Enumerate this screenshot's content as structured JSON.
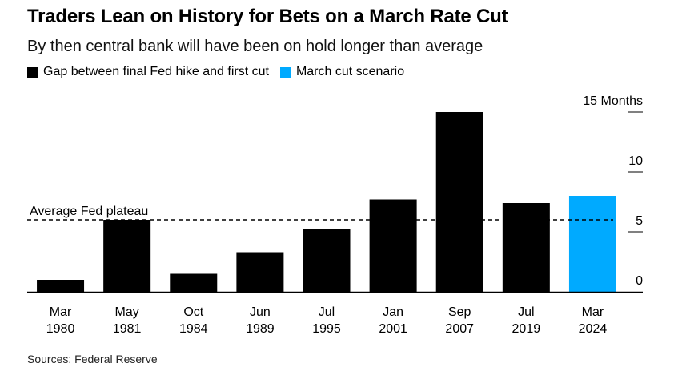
{
  "chart_data": {
    "type": "bar",
    "title": "Traders Lean on History for Bets on a March Rate Cut",
    "subtitle": "By then central bank will have been on hold longer than average",
    "categories": [
      {
        "month": "Mar",
        "year": "1980"
      },
      {
        "month": "May",
        "year": "1981"
      },
      {
        "month": "Oct",
        "year": "1984"
      },
      {
        "month": "Jun",
        "year": "1989"
      },
      {
        "month": "Jul",
        "year": "1995"
      },
      {
        "month": "Jan",
        "year": "2001"
      },
      {
        "month": "Sep",
        "year": "2007"
      },
      {
        "month": "Jul",
        "year": "2019"
      },
      {
        "month": "Mar",
        "year": "2024"
      }
    ],
    "series": [
      {
        "name": "Gap between final Fed hike and first cut",
        "color": "#000000",
        "values": [
          1,
          6,
          1.5,
          3.3,
          5.2,
          7.7,
          15,
          7.4,
          8
        ]
      },
      {
        "name": "March cut scenario",
        "color": "#00aaff"
      }
    ],
    "scenario_index": 8,
    "reference_line": {
      "label": "Average Fed plateau",
      "value": 6
    },
    "y_axis": {
      "ticks": [
        "0",
        "5",
        "10",
        "15 Months"
      ],
      "tick_values": [
        0,
        5,
        10,
        15
      ]
    },
    "ylim": [
      0,
      15
    ],
    "source": "Sources: Federal Reserve"
  }
}
